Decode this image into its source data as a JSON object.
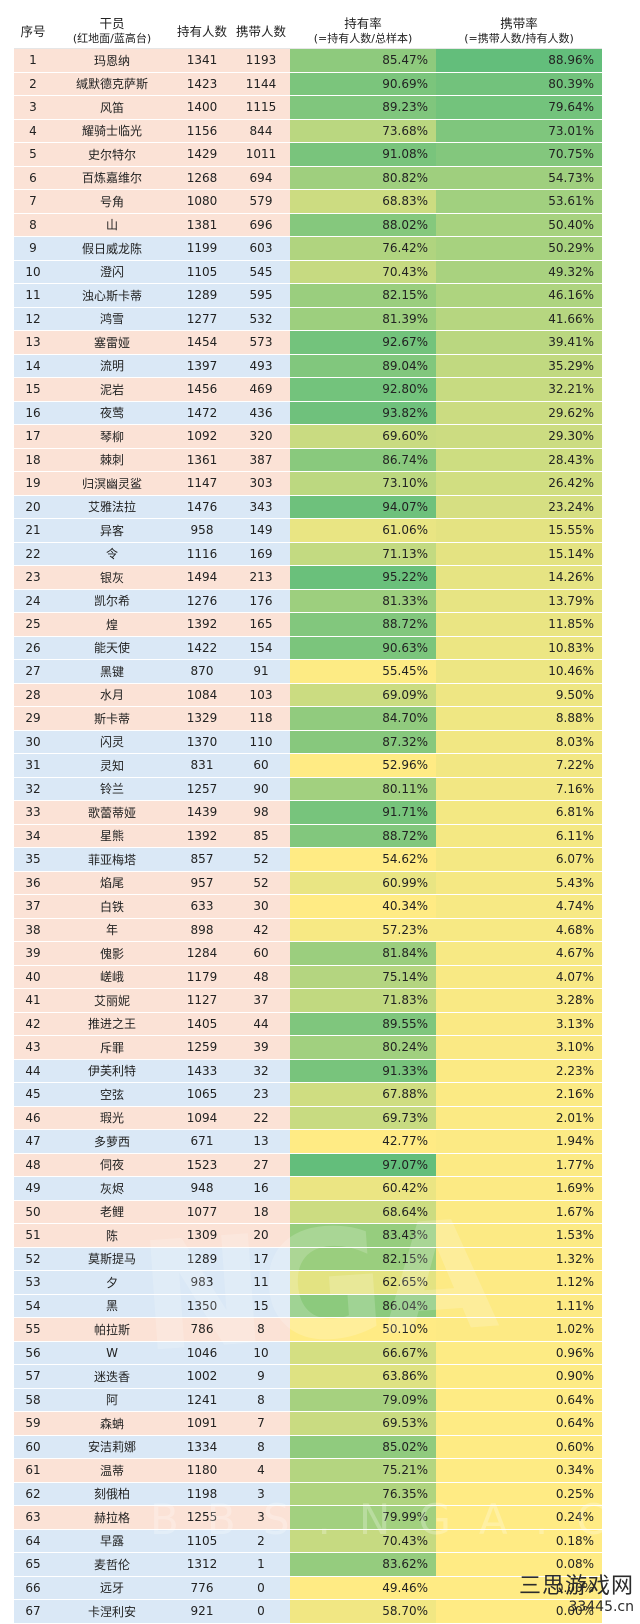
{
  "headers": {
    "idx": "序号",
    "name": "干员",
    "name_sub": "(红地面/蓝高台)",
    "own": "持有人数",
    "use": "携带人数",
    "own_rate": "持有率",
    "own_rate_sub": "(=持有人数/总样本)",
    "use_rate": "携带率",
    "use_rate_sub": "(=携带人数/持有人数)"
  },
  "colors": {
    "ground": "#fbe2d6",
    "high": "#dae8f6",
    "rate_low": "#ffeb84",
    "rate_high": "#63be7b"
  },
  "rows": [
    {
      "idx": "1",
      "name": "玛恩纳",
      "own": "1341",
      "use": "1193",
      "own_rate": "85.47%",
      "use_rate": "88.96%",
      "type": "ground"
    },
    {
      "idx": "2",
      "name": "缄默德克萨斯",
      "own": "1423",
      "use": "1144",
      "own_rate": "90.69%",
      "use_rate": "80.39%",
      "type": "ground"
    },
    {
      "idx": "3",
      "name": "风笛",
      "own": "1400",
      "use": "1115",
      "own_rate": "89.23%",
      "use_rate": "79.64%",
      "type": "ground"
    },
    {
      "idx": "4",
      "name": "耀骑士临光",
      "own": "1156",
      "use": "844",
      "own_rate": "73.68%",
      "use_rate": "73.01%",
      "type": "ground"
    },
    {
      "idx": "5",
      "name": "史尔特尔",
      "own": "1429",
      "use": "1011",
      "own_rate": "91.08%",
      "use_rate": "70.75%",
      "type": "ground"
    },
    {
      "idx": "6",
      "name": "百炼嘉维尔",
      "own": "1268",
      "use": "694",
      "own_rate": "80.82%",
      "use_rate": "54.73%",
      "type": "ground"
    },
    {
      "idx": "7",
      "name": "号角",
      "own": "1080",
      "use": "579",
      "own_rate": "68.83%",
      "use_rate": "53.61%",
      "type": "ground"
    },
    {
      "idx": "8",
      "name": "山",
      "own": "1381",
      "use": "696",
      "own_rate": "88.02%",
      "use_rate": "50.40%",
      "type": "ground"
    },
    {
      "idx": "9",
      "name": "假日威龙陈",
      "own": "1199",
      "use": "603",
      "own_rate": "76.42%",
      "use_rate": "50.29%",
      "type": "high"
    },
    {
      "idx": "10",
      "name": "澄闪",
      "own": "1105",
      "use": "545",
      "own_rate": "70.43%",
      "use_rate": "49.32%",
      "type": "high"
    },
    {
      "idx": "11",
      "name": "浊心斯卡蒂",
      "own": "1289",
      "use": "595",
      "own_rate": "82.15%",
      "use_rate": "46.16%",
      "type": "high"
    },
    {
      "idx": "12",
      "name": "鸿雪",
      "own": "1277",
      "use": "532",
      "own_rate": "81.39%",
      "use_rate": "41.66%",
      "type": "high"
    },
    {
      "idx": "13",
      "name": "塞雷娅",
      "own": "1454",
      "use": "573",
      "own_rate": "92.67%",
      "use_rate": "39.41%",
      "type": "ground"
    },
    {
      "idx": "14",
      "name": "流明",
      "own": "1397",
      "use": "493",
      "own_rate": "89.04%",
      "use_rate": "35.29%",
      "type": "high"
    },
    {
      "idx": "15",
      "name": "泥岩",
      "own": "1456",
      "use": "469",
      "own_rate": "92.80%",
      "use_rate": "32.21%",
      "type": "ground"
    },
    {
      "idx": "16",
      "name": "夜莺",
      "own": "1472",
      "use": "436",
      "own_rate": "93.82%",
      "use_rate": "29.62%",
      "type": "high"
    },
    {
      "idx": "17",
      "name": "琴柳",
      "own": "1092",
      "use": "320",
      "own_rate": "69.60%",
      "use_rate": "29.30%",
      "type": "ground"
    },
    {
      "idx": "18",
      "name": "棘刺",
      "own": "1361",
      "use": "387",
      "own_rate": "86.74%",
      "use_rate": "28.43%",
      "type": "ground"
    },
    {
      "idx": "19",
      "name": "归溟幽灵鲨",
      "own": "1147",
      "use": "303",
      "own_rate": "73.10%",
      "use_rate": "26.42%",
      "type": "ground"
    },
    {
      "idx": "20",
      "name": "艾雅法拉",
      "own": "1476",
      "use": "343",
      "own_rate": "94.07%",
      "use_rate": "23.24%",
      "type": "high"
    },
    {
      "idx": "21",
      "name": "异客",
      "own": "958",
      "use": "149",
      "own_rate": "61.06%",
      "use_rate": "15.55%",
      "type": "high"
    },
    {
      "idx": "22",
      "name": "令",
      "own": "1116",
      "use": "169",
      "own_rate": "71.13%",
      "use_rate": "15.14%",
      "type": "high"
    },
    {
      "idx": "23",
      "name": "银灰",
      "own": "1494",
      "use": "213",
      "own_rate": "95.22%",
      "use_rate": "14.26%",
      "type": "ground"
    },
    {
      "idx": "24",
      "name": "凯尔希",
      "own": "1276",
      "use": "176",
      "own_rate": "81.33%",
      "use_rate": "13.79%",
      "type": "high"
    },
    {
      "idx": "25",
      "name": "煌",
      "own": "1392",
      "use": "165",
      "own_rate": "88.72%",
      "use_rate": "11.85%",
      "type": "ground"
    },
    {
      "idx": "26",
      "name": "能天使",
      "own": "1422",
      "use": "154",
      "own_rate": "90.63%",
      "use_rate": "10.83%",
      "type": "high"
    },
    {
      "idx": "27",
      "name": "黑键",
      "own": "870",
      "use": "91",
      "own_rate": "55.45%",
      "use_rate": "10.46%",
      "type": "high"
    },
    {
      "idx": "28",
      "name": "水月",
      "own": "1084",
      "use": "103",
      "own_rate": "69.09%",
      "use_rate": "9.50%",
      "type": "ground"
    },
    {
      "idx": "29",
      "name": "斯卡蒂",
      "own": "1329",
      "use": "118",
      "own_rate": "84.70%",
      "use_rate": "8.88%",
      "type": "ground"
    },
    {
      "idx": "30",
      "name": "闪灵",
      "own": "1370",
      "use": "110",
      "own_rate": "87.32%",
      "use_rate": "8.03%",
      "type": "high"
    },
    {
      "idx": "31",
      "name": "灵知",
      "own": "831",
      "use": "60",
      "own_rate": "52.96%",
      "use_rate": "7.22%",
      "type": "high"
    },
    {
      "idx": "32",
      "name": "铃兰",
      "own": "1257",
      "use": "90",
      "own_rate": "80.11%",
      "use_rate": "7.16%",
      "type": "high"
    },
    {
      "idx": "33",
      "name": "歌蕾蒂娅",
      "own": "1439",
      "use": "98",
      "own_rate": "91.71%",
      "use_rate": "6.81%",
      "type": "ground"
    },
    {
      "idx": "34",
      "name": "星熊",
      "own": "1392",
      "use": "85",
      "own_rate": "88.72%",
      "use_rate": "6.11%",
      "type": "ground"
    },
    {
      "idx": "35",
      "name": "菲亚梅塔",
      "own": "857",
      "use": "52",
      "own_rate": "54.62%",
      "use_rate": "6.07%",
      "type": "high"
    },
    {
      "idx": "36",
      "name": "焰尾",
      "own": "957",
      "use": "52",
      "own_rate": "60.99%",
      "use_rate": "5.43%",
      "type": "ground"
    },
    {
      "idx": "37",
      "name": "白铁",
      "own": "633",
      "use": "30",
      "own_rate": "40.34%",
      "use_rate": "4.74%",
      "type": "ground"
    },
    {
      "idx": "38",
      "name": "年",
      "own": "898",
      "use": "42",
      "own_rate": "57.23%",
      "use_rate": "4.68%",
      "type": "ground"
    },
    {
      "idx": "39",
      "name": "傀影",
      "own": "1284",
      "use": "60",
      "own_rate": "81.84%",
      "use_rate": "4.67%",
      "type": "ground"
    },
    {
      "idx": "40",
      "name": "嵯峨",
      "own": "1179",
      "use": "48",
      "own_rate": "75.14%",
      "use_rate": "4.07%",
      "type": "ground"
    },
    {
      "idx": "41",
      "name": "艾丽妮",
      "own": "1127",
      "use": "37",
      "own_rate": "71.83%",
      "use_rate": "3.28%",
      "type": "ground"
    },
    {
      "idx": "42",
      "name": "推进之王",
      "own": "1405",
      "use": "44",
      "own_rate": "89.55%",
      "use_rate": "3.13%",
      "type": "ground"
    },
    {
      "idx": "43",
      "name": "斥罪",
      "own": "1259",
      "use": "39",
      "own_rate": "80.24%",
      "use_rate": "3.10%",
      "type": "ground"
    },
    {
      "idx": "44",
      "name": "伊芙利特",
      "own": "1433",
      "use": "32",
      "own_rate": "91.33%",
      "use_rate": "2.23%",
      "type": "high"
    },
    {
      "idx": "45",
      "name": "空弦",
      "own": "1065",
      "use": "23",
      "own_rate": "67.88%",
      "use_rate": "2.16%",
      "type": "high"
    },
    {
      "idx": "46",
      "name": "瑕光",
      "own": "1094",
      "use": "22",
      "own_rate": "69.73%",
      "use_rate": "2.01%",
      "type": "ground"
    },
    {
      "idx": "47",
      "name": "多萝西",
      "own": "671",
      "use": "13",
      "own_rate": "42.77%",
      "use_rate": "1.94%",
      "type": "high"
    },
    {
      "idx": "48",
      "name": "伺夜",
      "own": "1523",
      "use": "27",
      "own_rate": "97.07%",
      "use_rate": "1.77%",
      "type": "ground"
    },
    {
      "idx": "49",
      "name": "灰烬",
      "own": "948",
      "use": "16",
      "own_rate": "60.42%",
      "use_rate": "1.69%",
      "type": "high"
    },
    {
      "idx": "50",
      "name": "老鲤",
      "own": "1077",
      "use": "18",
      "own_rate": "68.64%",
      "use_rate": "1.67%",
      "type": "ground"
    },
    {
      "idx": "51",
      "name": "陈",
      "own": "1309",
      "use": "20",
      "own_rate": "83.43%",
      "use_rate": "1.53%",
      "type": "ground"
    },
    {
      "idx": "52",
      "name": "莫斯提马",
      "own": "1289",
      "use": "17",
      "own_rate": "82.15%",
      "use_rate": "1.32%",
      "type": "high"
    },
    {
      "idx": "53",
      "name": "夕",
      "own": "983",
      "use": "11",
      "own_rate": "62.65%",
      "use_rate": "1.12%",
      "type": "high"
    },
    {
      "idx": "54",
      "name": "黑",
      "own": "1350",
      "use": "15",
      "own_rate": "86.04%",
      "use_rate": "1.11%",
      "type": "high"
    },
    {
      "idx": "55",
      "name": "帕拉斯",
      "own": "786",
      "use": "8",
      "own_rate": "50.10%",
      "use_rate": "1.02%",
      "type": "ground"
    },
    {
      "idx": "56",
      "name": "W",
      "own": "1046",
      "use": "10",
      "own_rate": "66.67%",
      "use_rate": "0.96%",
      "type": "high"
    },
    {
      "idx": "57",
      "name": "迷迭香",
      "own": "1002",
      "use": "9",
      "own_rate": "63.86%",
      "use_rate": "0.90%",
      "type": "high"
    },
    {
      "idx": "58",
      "name": "阿",
      "own": "1241",
      "use": "8",
      "own_rate": "79.09%",
      "use_rate": "0.64%",
      "type": "high"
    },
    {
      "idx": "59",
      "name": "森蚺",
      "own": "1091",
      "use": "7",
      "own_rate": "69.53%",
      "use_rate": "0.64%",
      "type": "ground"
    },
    {
      "idx": "60",
      "name": "安洁莉娜",
      "own": "1334",
      "use": "8",
      "own_rate": "85.02%",
      "use_rate": "0.60%",
      "type": "high"
    },
    {
      "idx": "61",
      "name": "温蒂",
      "own": "1180",
      "use": "4",
      "own_rate": "75.21%",
      "use_rate": "0.34%",
      "type": "ground"
    },
    {
      "idx": "62",
      "name": "刻俄柏",
      "own": "1198",
      "use": "3",
      "own_rate": "76.35%",
      "use_rate": "0.25%",
      "type": "high"
    },
    {
      "idx": "63",
      "name": "赫拉格",
      "own": "1255",
      "use": "3",
      "own_rate": "79.99%",
      "use_rate": "0.24%",
      "type": "ground"
    },
    {
      "idx": "64",
      "name": "早露",
      "own": "1105",
      "use": "2",
      "own_rate": "70.43%",
      "use_rate": "0.18%",
      "type": "high"
    },
    {
      "idx": "65",
      "name": "麦哲伦",
      "own": "1312",
      "use": "1",
      "own_rate": "83.62%",
      "use_rate": "0.08%",
      "type": "high"
    },
    {
      "idx": "66",
      "name": "远牙",
      "own": "776",
      "use": "0",
      "own_rate": "49.46%",
      "use_rate": "0.00%",
      "type": "high"
    },
    {
      "idx": "67",
      "name": "卡涅利安",
      "own": "921",
      "use": "0",
      "own_rate": "58.70%",
      "use_rate": "0.00%",
      "type": "high"
    }
  ],
  "watermark": {
    "line1": "三思游戏网",
    "line2": "33445.cn",
    "nga": "NGA",
    "bbs": "BBS.NGA.CN"
  }
}
